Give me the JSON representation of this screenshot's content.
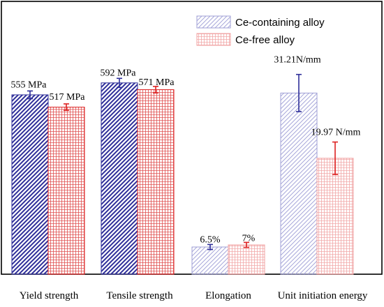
{
  "chart_data": {
    "type": "bar",
    "title": "",
    "xlabel": "",
    "ylabel": "",
    "grid": false,
    "legend_position": "top-right",
    "categories": [
      "Yield strength",
      "Tensile strength",
      "Elongation",
      "Unit initiation energy"
    ],
    "series": [
      {
        "name": "Ce-containing alloy",
        "color": "#2e2e99",
        "light_color": "#9f9fd6",
        "values": [
          555,
          592,
          6.5,
          31.21
        ],
        "errors": [
          12,
          14,
          0.6,
          3.2
        ],
        "labels": [
          "555 MPa",
          "592 MPa",
          "6.5%",
          "31.21N/mm"
        ]
      },
      {
        "name": "Ce-free alloy",
        "color": "#dd2222",
        "light_color": "#f0a0a0",
        "values": [
          517,
          571,
          7,
          19.97
        ],
        "errors": [
          10,
          10,
          0.6,
          2.8
        ],
        "labels": [
          "517 MPa",
          "571 MPa",
          "7%",
          "19.97 N/mm"
        ]
      }
    ]
  }
}
